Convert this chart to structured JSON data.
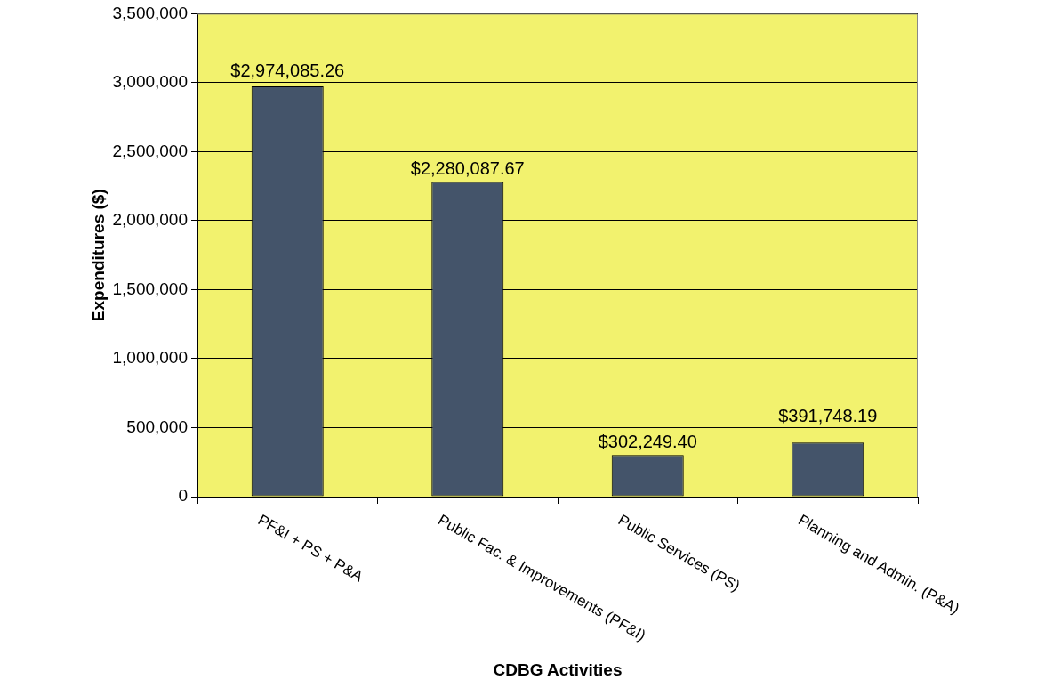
{
  "chart_data": {
    "type": "bar",
    "xlabel": "CDBG Activities",
    "ylabel": "Expenditures ($)",
    "categories": [
      "PF&I + PS + P&A",
      "Public Fac. & Improvements (PF&I)",
      "Public Services (PS)",
      "Planning and Admin. (P&A)"
    ],
    "values": [
      2974085.26,
      2280087.67,
      302249.4,
      391748.19
    ],
    "value_labels": [
      "$2,974,085.26",
      "$2,280,087.67",
      "$302,249.40",
      "$391,748.19"
    ],
    "color": "#44546a",
    "ylim": [
      0,
      3500000
    ],
    "yticks": [
      {
        "value": 0,
        "label": "0"
      },
      {
        "value": 500000,
        "label": "500,000"
      },
      {
        "value": 1000000,
        "label": "1,000,000"
      },
      {
        "value": 1500000,
        "label": "1,500,000"
      },
      {
        "value": 2000000,
        "label": "2,000,000"
      },
      {
        "value": 2500000,
        "label": "2,500,000"
      },
      {
        "value": 3000000,
        "label": "3,000,000"
      },
      {
        "value": 3500000,
        "label": "3,500,000"
      }
    ],
    "grid": "y"
  }
}
